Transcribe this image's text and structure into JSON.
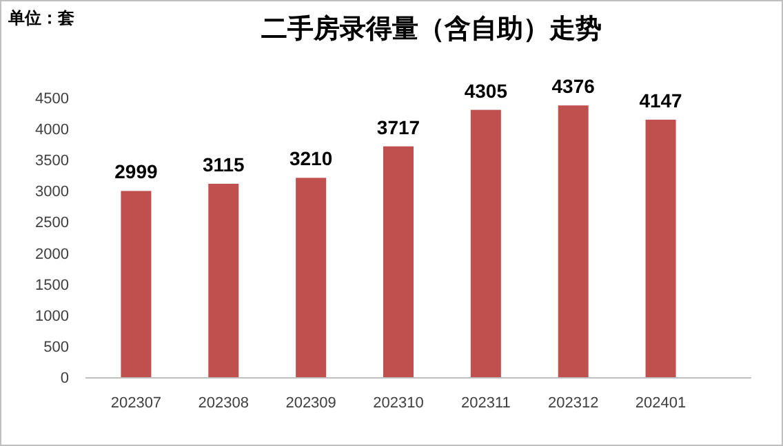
{
  "chart_data": {
    "type": "bar",
    "title": "二手房录得量（含自助）走势",
    "ylabel": "单位：套",
    "categories": [
      "202307",
      "202308",
      "202309",
      "202310",
      "202311",
      "202312",
      "202401"
    ],
    "values": [
      2999,
      3115,
      3210,
      3717,
      4305,
      4376,
      4147
    ],
    "color": "#c0504d",
    "ylim": [
      0,
      4500
    ],
    "yticks": [
      0,
      500,
      1000,
      1500,
      2000,
      2500,
      3000,
      3500,
      4000,
      4500
    ],
    "data_labels": true,
    "grid": false
  }
}
